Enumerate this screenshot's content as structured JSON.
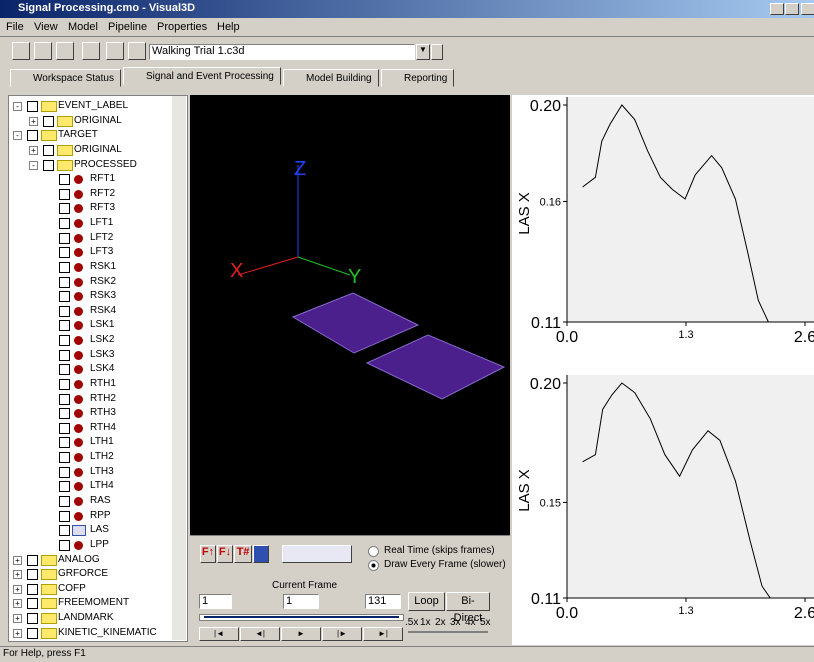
{
  "window": {
    "title": "Signal Processing.cmo - Visual3D"
  },
  "menu": [
    "File",
    "View",
    "Model",
    "Pipeline",
    "Properties",
    "Help"
  ],
  "toolbar": {
    "file": "Walking Trial 1.c3d"
  },
  "tabs": [
    "Workspace Status",
    "Signal and Event Processing",
    "Model Building",
    "Reporting"
  ],
  "tree": [
    "EVENT_LABEL",
    "ORIGINAL",
    "TARGET",
    "ORIGINAL",
    "PROCESSED",
    "RFT1",
    "RFT2",
    "RFT3",
    "LFT1",
    "LFT2",
    "LFT3",
    "RSK1",
    "RSK2",
    "RSK3",
    "RSK4",
    "LSK1",
    "LSK2",
    "LSK3",
    "LSK4",
    "RTH1",
    "RTH2",
    "RTH3",
    "RTH4",
    "LTH1",
    "LTH2",
    "LTH3",
    "LTH4",
    "RAS",
    "RPP",
    "LAS",
    "LPP",
    "ANALOG",
    "GRFORCE",
    "COFP",
    "FREEMOMENT",
    "LANDMARK",
    "KINETIC_KINEMATIC"
  ],
  "view3d": {
    "axes": [
      "X",
      "Y",
      "Z"
    ]
  },
  "controls": {
    "buttons": [
      "F↑",
      "F↓",
      "T#"
    ],
    "radio": [
      "Real Time (skips frames)",
      "Draw Every Frame (slower)"
    ],
    "current_frame_label": "Current Frame",
    "start": "1",
    "current": "1",
    "end": "131",
    "loop": "Loop",
    "bidirect": "Bi-Direct",
    "speeds": [
      ".5x",
      "1x",
      "2x",
      "3x",
      "4x",
      "5x"
    ]
  },
  "chart_data": [
    {
      "type": "line",
      "ylabel": "LAS X",
      "color": "#000000",
      "x": [
        0.17,
        0.31,
        0.38,
        0.47,
        0.6,
        0.74,
        0.88,
        1.02,
        1.15,
        1.29,
        1.4,
        1.58,
        1.69,
        1.84,
        1.98,
        2.09,
        2.2
      ],
      "values": [
        0.166,
        0.17,
        0.185,
        0.192,
        0.2,
        0.194,
        0.181,
        0.17,
        0.165,
        0.161,
        0.171,
        0.179,
        0.174,
        0.161,
        0.138,
        0.119,
        0.11
      ],
      "xlim": [
        0,
        2.6
      ],
      "xticks": [
        {
          "value": 0,
          "label": "0.0"
        },
        1.3,
        2.6
      ],
      "ylim": [
        0.11,
        0.2
      ],
      "yticks": [
        {
          "value": 0.2,
          "label": "0.20"
        },
        0.16,
        0.11
      ]
    },
    {
      "type": "line",
      "ylabel": "LAS X",
      "color": "#000000",
      "x": [
        0.17,
        0.31,
        0.39,
        0.49,
        0.6,
        0.74,
        0.91,
        1.07,
        1.23,
        1.37,
        1.54,
        1.67,
        1.84,
        2.0,
        2.13,
        2.22
      ],
      "values": [
        0.167,
        0.17,
        0.189,
        0.195,
        0.2,
        0.196,
        0.185,
        0.17,
        0.161,
        0.172,
        0.18,
        0.176,
        0.159,
        0.134,
        0.115,
        0.11
      ],
      "xlim": [
        0,
        2.6
      ],
      "xticks": [
        {
          "value": 0,
          "label": "0.0"
        },
        1.3,
        2.6
      ],
      "ylim": [
        0.11,
        0.2
      ],
      "yticks": [
        {
          "value": 0.2,
          "label": "0.20"
        },
        0.15,
        0.11
      ]
    }
  ],
  "status": "For Help, press F1"
}
